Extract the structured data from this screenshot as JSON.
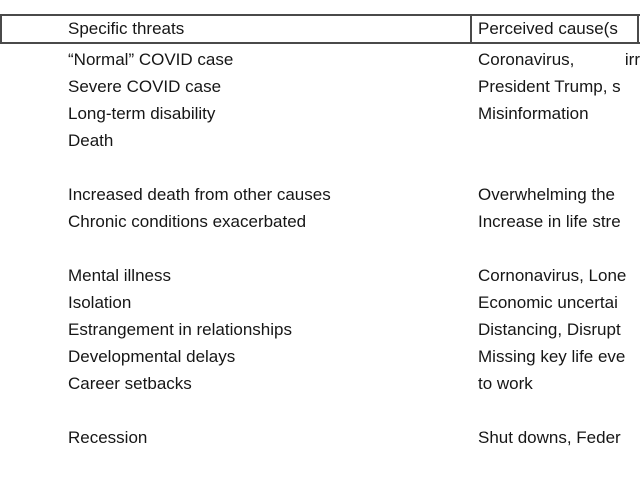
{
  "page": {
    "background": "#ffffff"
  },
  "table": {
    "colors": {
      "text": "#161616",
      "rule": "#4a4a4a"
    },
    "columns": [
      {
        "header": "Specific threats"
      },
      {
        "header": "Perceived cause(s"
      }
    ],
    "rows": [
      {
        "threat": "“Normal” COVID case",
        "cause": "Coronavirus,",
        "cause_end": "irr"
      },
      {
        "threat": "Severe COVID case",
        "cause": "President Trump, s"
      },
      {
        "threat": "Long-term disability",
        "cause": "Misinformation"
      },
      {
        "threat": "Death",
        "cause": ""
      },
      {
        "threat": "",
        "cause": ""
      },
      {
        "threat": "Increased death from other causes",
        "cause": "Overwhelming the"
      },
      {
        "threat": "Chronic conditions exacerbated",
        "cause": "Increase in life stre"
      },
      {
        "threat": "",
        "cause": ""
      },
      {
        "threat": "Mental illness",
        "cause": "Cornonavirus, Lone"
      },
      {
        "threat": "Isolation",
        "cause": "Economic uncertai"
      },
      {
        "threat": "Estrangement in relationships",
        "cause": "Distancing, Disrupt"
      },
      {
        "threat": "Developmental delays",
        "cause": "Missing key life eve"
      },
      {
        "threat": "Career setbacks",
        "cause": "to work"
      },
      {
        "threat": "",
        "cause": ""
      },
      {
        "threat": "Recession",
        "cause": "Shut downs, Feder"
      }
    ]
  }
}
